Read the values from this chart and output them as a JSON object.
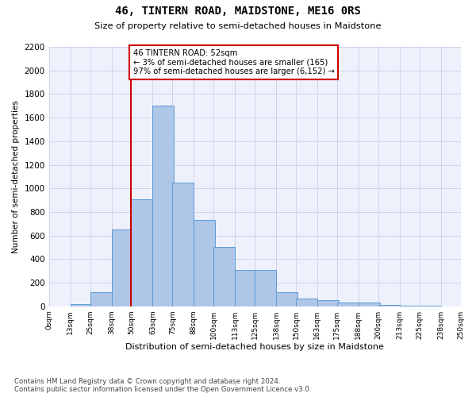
{
  "title": "46, TINTERN ROAD, MAIDSTONE, ME16 0RS",
  "subtitle": "Size of property relative to semi-detached houses in Maidstone",
  "xlabel": "Distribution of semi-detached houses by size in Maidstone",
  "ylabel": "Number of semi-detached properties",
  "property_label": "46 TINTERN ROAD: 52sqm",
  "pct_smaller": 3,
  "pct_larger": 97,
  "n_smaller": 165,
  "n_larger": 6152,
  "bin_starts": [
    0,
    13,
    25,
    38,
    50,
    63,
    75,
    88,
    100,
    113,
    125,
    138,
    150,
    163,
    175,
    188,
    200,
    213,
    225,
    238
  ],
  "bin_labels": [
    "0sqm",
    "13sqm",
    "25sqm",
    "38sqm",
    "50sqm",
    "63sqm",
    "75sqm",
    "88sqm",
    "100sqm",
    "113sqm",
    "125sqm",
    "138sqm",
    "150sqm",
    "163sqm",
    "175sqm",
    "188sqm",
    "200sqm",
    "213sqm",
    "225sqm",
    "238sqm",
    "250sqm"
  ],
  "bar_heights": [
    0,
    20,
    120,
    650,
    910,
    1700,
    1050,
    730,
    500,
    310,
    310,
    120,
    65,
    50,
    35,
    30,
    10,
    5,
    2,
    1
  ],
  "bar_color": "#aec6e8",
  "bar_edge_color": "#5b9bd5",
  "vline_x": 50,
  "vline_color": "#cc0000",
  "annotation_box_color": "#cc0000",
  "ylim": [
    0,
    2200
  ],
  "yticks": [
    0,
    200,
    400,
    600,
    800,
    1000,
    1200,
    1400,
    1600,
    1800,
    2000,
    2200
  ],
  "xlim": [
    0,
    250
  ],
  "grid_color": "#c8d0e8",
  "bg_color": "#eef1fb",
  "footer_line1": "Contains HM Land Registry data © Crown copyright and database right 2024.",
  "footer_line2": "Contains public sector information licensed under the Open Government Licence v3.0."
}
